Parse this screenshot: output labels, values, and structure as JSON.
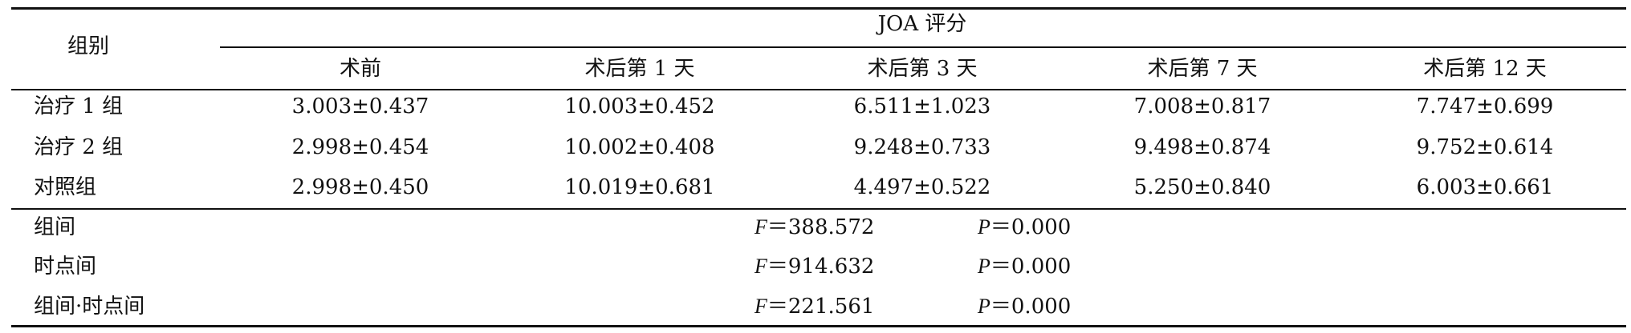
{
  "table": {
    "group_header": "组别",
    "score_header": "JOA 评分",
    "time_headers": [
      "术前",
      "术后第 1 天",
      "术后第 3 天",
      "术后第 7 天",
      "术后第 12 天"
    ],
    "rows": [
      [
        "治疗 1 组",
        "3.003±0.437",
        "10.003±0.452",
        "6.511±1.023",
        "7.008±0.817",
        "7.747±0.699"
      ],
      [
        "治疗 2 组",
        "2.998±0.454",
        "10.002±0.408",
        "9.248±0.733",
        "9.498±0.874",
        "9.752±0.614"
      ],
      [
        "对照组",
        "2.998±0.450",
        "10.019±0.681",
        "4.497±0.522",
        "5.250±0.840",
        "6.003±0.661"
      ]
    ],
    "stats": [
      {
        "label": "组间",
        "f_name": "F",
        "f_value": "＝388.572",
        "p_name": "P",
        "p_value": "＝0.000"
      },
      {
        "label": "时点间",
        "f_name": "F",
        "f_value": "＝914.632",
        "p_name": "P",
        "p_value": "＝0.000"
      },
      {
        "label": "组间·时点间",
        "f_name": "F",
        "f_value": "＝221.561",
        "p_name": "P",
        "p_value": "＝0.000"
      }
    ]
  }
}
